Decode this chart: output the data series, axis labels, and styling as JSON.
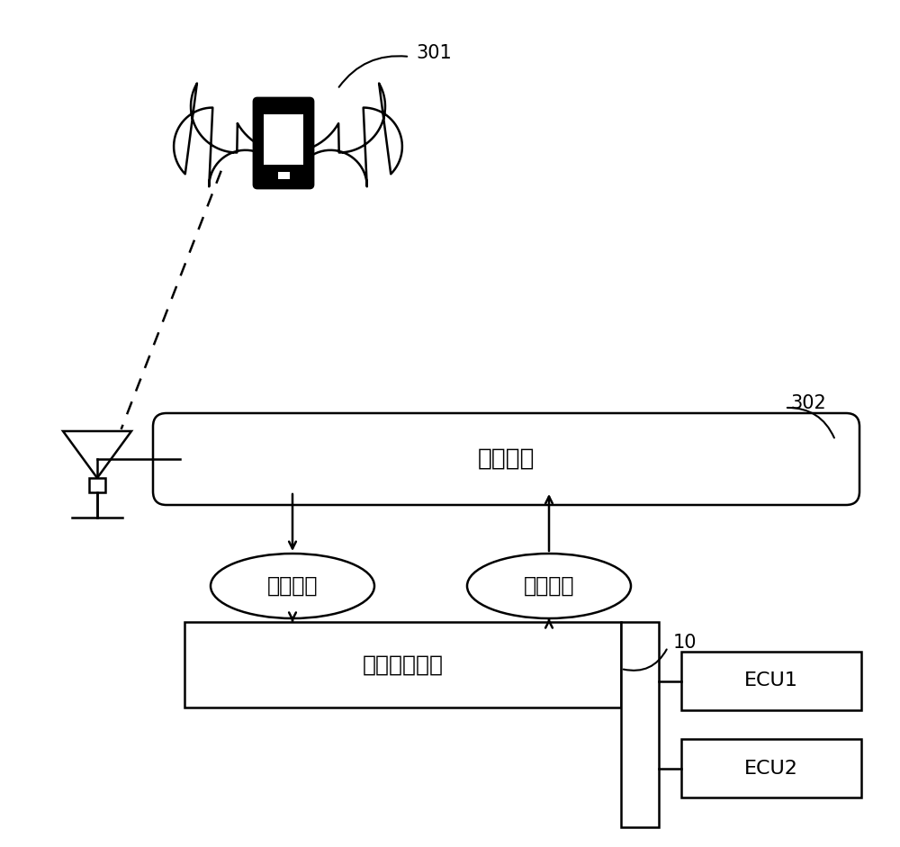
{
  "bg_color": "#ffffff",
  "label_301": "301",
  "label_302": "302",
  "label_10": "10",
  "gateway_text": "中央网关",
  "service_req_text": "服务请求",
  "service_prov_text": "服务提供",
  "controller_text": "动力域控制器",
  "ecu1_text": "ECU1",
  "ecu2_text": "ECU2",
  "font_size_label": 15,
  "font_size_box": 19,
  "font_size_ecu": 16,
  "lw": 1.8
}
